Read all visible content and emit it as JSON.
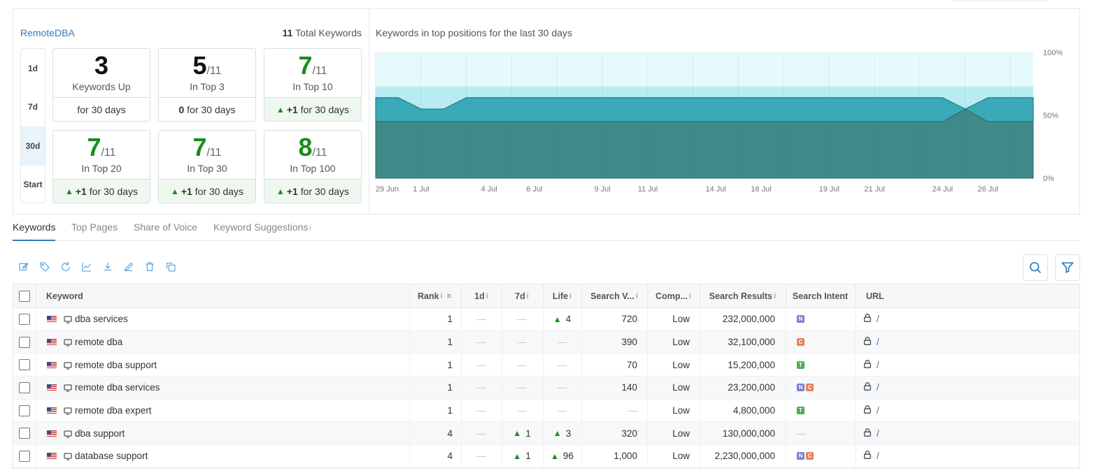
{
  "project": {
    "name": "RemoteDBA",
    "total_count": "11",
    "total_label": "Total Keywords"
  },
  "periods": [
    {
      "label": "1d",
      "active": false
    },
    {
      "label": "7d",
      "active": false
    },
    {
      "label": "30d",
      "active": true
    },
    {
      "label": "Start",
      "active": false
    }
  ],
  "cards": [
    {
      "value": "3",
      "of": "",
      "label": "Keywords Up",
      "delta": "",
      "period": "for 30 days",
      "color": "#111111",
      "positive": false
    },
    {
      "value": "5",
      "of": "/11",
      "label": "In Top 3",
      "delta": "0",
      "period": "for 30 days",
      "color": "#111111",
      "positive": false
    },
    {
      "value": "7",
      "of": "/11",
      "label": "In Top 10",
      "delta": "+1",
      "period": "for 30 days",
      "color": "#1a8c1a",
      "positive": true
    },
    {
      "value": "7",
      "of": "/11",
      "label": "In Top 20",
      "delta": "+1",
      "period": "for 30 days",
      "color": "#1a8c1a",
      "positive": true
    },
    {
      "value": "7",
      "of": "/11",
      "label": "In Top 30",
      "delta": "+1",
      "period": "for 30 days",
      "color": "#1a8c1a",
      "positive": true
    },
    {
      "value": "8",
      "of": "/11",
      "label": "In Top 100",
      "delta": "+1",
      "period": "for 30 days",
      "color": "#1a8c1a",
      "positive": true
    }
  ],
  "chart_data": {
    "type": "area",
    "title": "Keywords in top positions for the last 30 days",
    "x": [
      "29 Jun",
      "30 Jun",
      "1 Jul",
      "2 Jul",
      "3 Jul",
      "4 Jul",
      "5 Jul",
      "6 Jul",
      "7 Jul",
      "8 Jul",
      "9 Jul",
      "10 Jul",
      "11 Jul",
      "12 Jul",
      "13 Jul",
      "14 Jul",
      "15 Jul",
      "16 Jul",
      "17 Jul",
      "18 Jul",
      "19 Jul",
      "20 Jul",
      "21 Jul",
      "22 Jul",
      "23 Jul",
      "24 Jul",
      "25 Jul",
      "26 Jul",
      "27 Jul",
      "28 Jul"
    ],
    "x_ticks": [
      "29 Jun",
      "1 Jul",
      "4 Jul",
      "6 Jul",
      "9 Jul",
      "11 Jul",
      "14 Jul",
      "16 Jul",
      "19 Jul",
      "21 Jul",
      "24 Jul",
      "26 Jul"
    ],
    "y_ticks": [
      "100%",
      "50%",
      "0%"
    ],
    "ylim": [
      0,
      100
    ],
    "series": [
      {
        "values": [
          100,
          100,
          100,
          100,
          100,
          100,
          100,
          100,
          100,
          100,
          100,
          100,
          100,
          100,
          100,
          100,
          100,
          100,
          100,
          100,
          100,
          100,
          100,
          100,
          100,
          100,
          100,
          100,
          100,
          100
        ],
        "color": "#e6f9fb"
      },
      {
        "values": [
          73,
          73,
          73,
          73,
          73,
          73,
          73,
          73,
          73,
          73,
          73,
          73,
          73,
          73,
          73,
          73,
          73,
          73,
          73,
          73,
          73,
          73,
          73,
          73,
          73,
          73,
          73,
          73,
          73,
          73
        ],
        "color": "#b8ecf2"
      },
      {
        "values": [
          64,
          64,
          55,
          55,
          64,
          64,
          64,
          64,
          64,
          64,
          64,
          64,
          64,
          64,
          64,
          64,
          64,
          64,
          64,
          64,
          64,
          64,
          64,
          64,
          64,
          64,
          55,
          64,
          64,
          64
        ],
        "color": "#3aaab8"
      },
      {
        "values": [
          45,
          45,
          45,
          45,
          45,
          45,
          45,
          45,
          45,
          45,
          45,
          45,
          45,
          45,
          45,
          45,
          45,
          45,
          45,
          45,
          45,
          45,
          45,
          45,
          45,
          45,
          55,
          45,
          45,
          45
        ],
        "color": "#3f8a88"
      }
    ]
  },
  "tabs": [
    {
      "label": "Keywords",
      "active": true
    },
    {
      "label": "Top Pages",
      "active": false
    },
    {
      "label": "Share of Voice",
      "active": false
    },
    {
      "label": "Keyword Suggestions",
      "active": false
    }
  ],
  "info_glyph": "i",
  "toolbar_icons": [
    "edit-icon",
    "tag-icon",
    "refresh-icon",
    "chart-icon",
    "download-icon",
    "pencil-icon",
    "trash-icon",
    "copy-icon"
  ],
  "columns": {
    "keyword": "Keyword",
    "rank": "Rank",
    "d1": "1d",
    "d7": "7d",
    "life": "Life",
    "search_volume": "Search V...",
    "competition": "Comp...",
    "search_results": "Search Results",
    "search_intent": "Search Intent",
    "url": "URL"
  },
  "dash": "—",
  "url_text": "/",
  "intent_colors": {
    "N": "#7b7fd4",
    "C": "#e8805a",
    "T": "#4caf50"
  },
  "rows": [
    {
      "keyword": "dba services",
      "rank": "1",
      "d1": "",
      "d7": "",
      "life": "4",
      "sv": "720",
      "comp": "Low",
      "results": "232,000,000",
      "intent": [
        "N"
      ]
    },
    {
      "keyword": "remote dba",
      "rank": "1",
      "d1": "",
      "d7": "",
      "life": "",
      "sv": "390",
      "comp": "Low",
      "results": "32,100,000",
      "intent": [
        "C"
      ]
    },
    {
      "keyword": "remote dba support",
      "rank": "1",
      "d1": "",
      "d7": "",
      "life": "",
      "sv": "70",
      "comp": "Low",
      "results": "15,200,000",
      "intent": [
        "T"
      ]
    },
    {
      "keyword": "remote dba services",
      "rank": "1",
      "d1": "",
      "d7": "",
      "life": "",
      "sv": "140",
      "comp": "Low",
      "results": "23,200,000",
      "intent": [
        "N",
        "C"
      ]
    },
    {
      "keyword": "remote dba expert",
      "rank": "1",
      "d1": "",
      "d7": "",
      "life": "",
      "sv": "",
      "comp": "Low",
      "results": "4,800,000",
      "intent": [
        "T"
      ]
    },
    {
      "keyword": "dba support",
      "rank": "4",
      "d1": "",
      "d7": "1",
      "life": "3",
      "sv": "320",
      "comp": "Low",
      "results": "130,000,000",
      "intent": []
    },
    {
      "keyword": "database support",
      "rank": "4",
      "d1": "",
      "d7": "1",
      "life": "96",
      "sv": "1,000",
      "comp": "Low",
      "results": "2,230,000,000",
      "intent": [
        "N",
        "C"
      ]
    }
  ]
}
